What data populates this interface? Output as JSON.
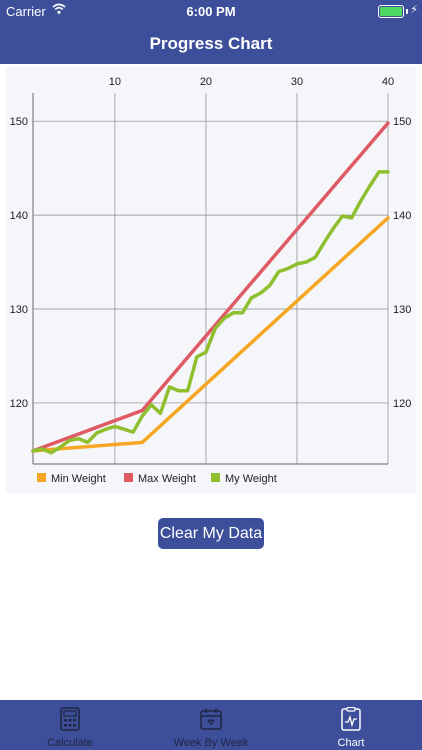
{
  "status_bar": {
    "carrier": "Carrier",
    "time": "6:00 PM"
  },
  "header": {
    "title": "Progress Chart"
  },
  "chart_data": {
    "type": "line",
    "title": "",
    "xlabel": "",
    "ylabel": "",
    "xlim": [
      1,
      40
    ],
    "ylim": [
      113.5,
      153
    ],
    "x_ticks": [
      10,
      20,
      30,
      40
    ],
    "y_ticks": [
      120,
      130,
      140,
      150
    ],
    "grid": true,
    "legend_position": "bottom-left",
    "series": [
      {
        "name": "Min Weight",
        "color": "#f5a623",
        "points": [
          [
            1,
            114.9
          ],
          [
            13,
            115.8
          ],
          [
            40,
            139.7
          ]
        ]
      },
      {
        "name": "Max Weight",
        "color": "#e05a64",
        "points": [
          [
            1,
            114.9
          ],
          [
            13,
            119.2
          ],
          [
            40,
            149.8
          ]
        ]
      },
      {
        "name": "My Weight",
        "color": "#8fbf2f",
        "points": [
          [
            1,
            114.9
          ],
          [
            2,
            115.1
          ],
          [
            3,
            114.7
          ],
          [
            4,
            115.3
          ],
          [
            5,
            116.0
          ],
          [
            6,
            116.2
          ],
          [
            7,
            115.8
          ],
          [
            8,
            116.8
          ],
          [
            9,
            117.2
          ],
          [
            10,
            117.5
          ],
          [
            11,
            117.2
          ],
          [
            12,
            116.9
          ],
          [
            13,
            118.6
          ],
          [
            14,
            119.8
          ],
          [
            15,
            118.9
          ],
          [
            16,
            121.7
          ],
          [
            17,
            121.3
          ],
          [
            18,
            121.3
          ],
          [
            19,
            124.9
          ],
          [
            20,
            125.4
          ],
          [
            21,
            127.9
          ],
          [
            22,
            129.0
          ],
          [
            23,
            129.6
          ],
          [
            24,
            129.6
          ],
          [
            25,
            131.2
          ],
          [
            26,
            131.7
          ],
          [
            27,
            132.5
          ],
          [
            28,
            134.0
          ],
          [
            29,
            134.3
          ],
          [
            30,
            134.8
          ],
          [
            31,
            135.0
          ],
          [
            32,
            135.5
          ],
          [
            33,
            137.1
          ],
          [
            34,
            138.6
          ],
          [
            35,
            139.9
          ],
          [
            36,
            139.7
          ],
          [
            37,
            141.5
          ],
          [
            38,
            143.1
          ],
          [
            39,
            144.6
          ],
          [
            40,
            144.6
          ]
        ]
      }
    ]
  },
  "actions": {
    "clear_label": "Clear My Data"
  },
  "tabs": [
    {
      "label": "Calculate",
      "icon": "calculator-icon"
    },
    {
      "label": "Week By Week",
      "icon": "calendar-icon"
    },
    {
      "label": "Chart",
      "icon": "chart-icon",
      "active": true
    }
  ],
  "colors": {
    "accent": "#3d4f9b",
    "tab_inactive": "#1f2540"
  }
}
